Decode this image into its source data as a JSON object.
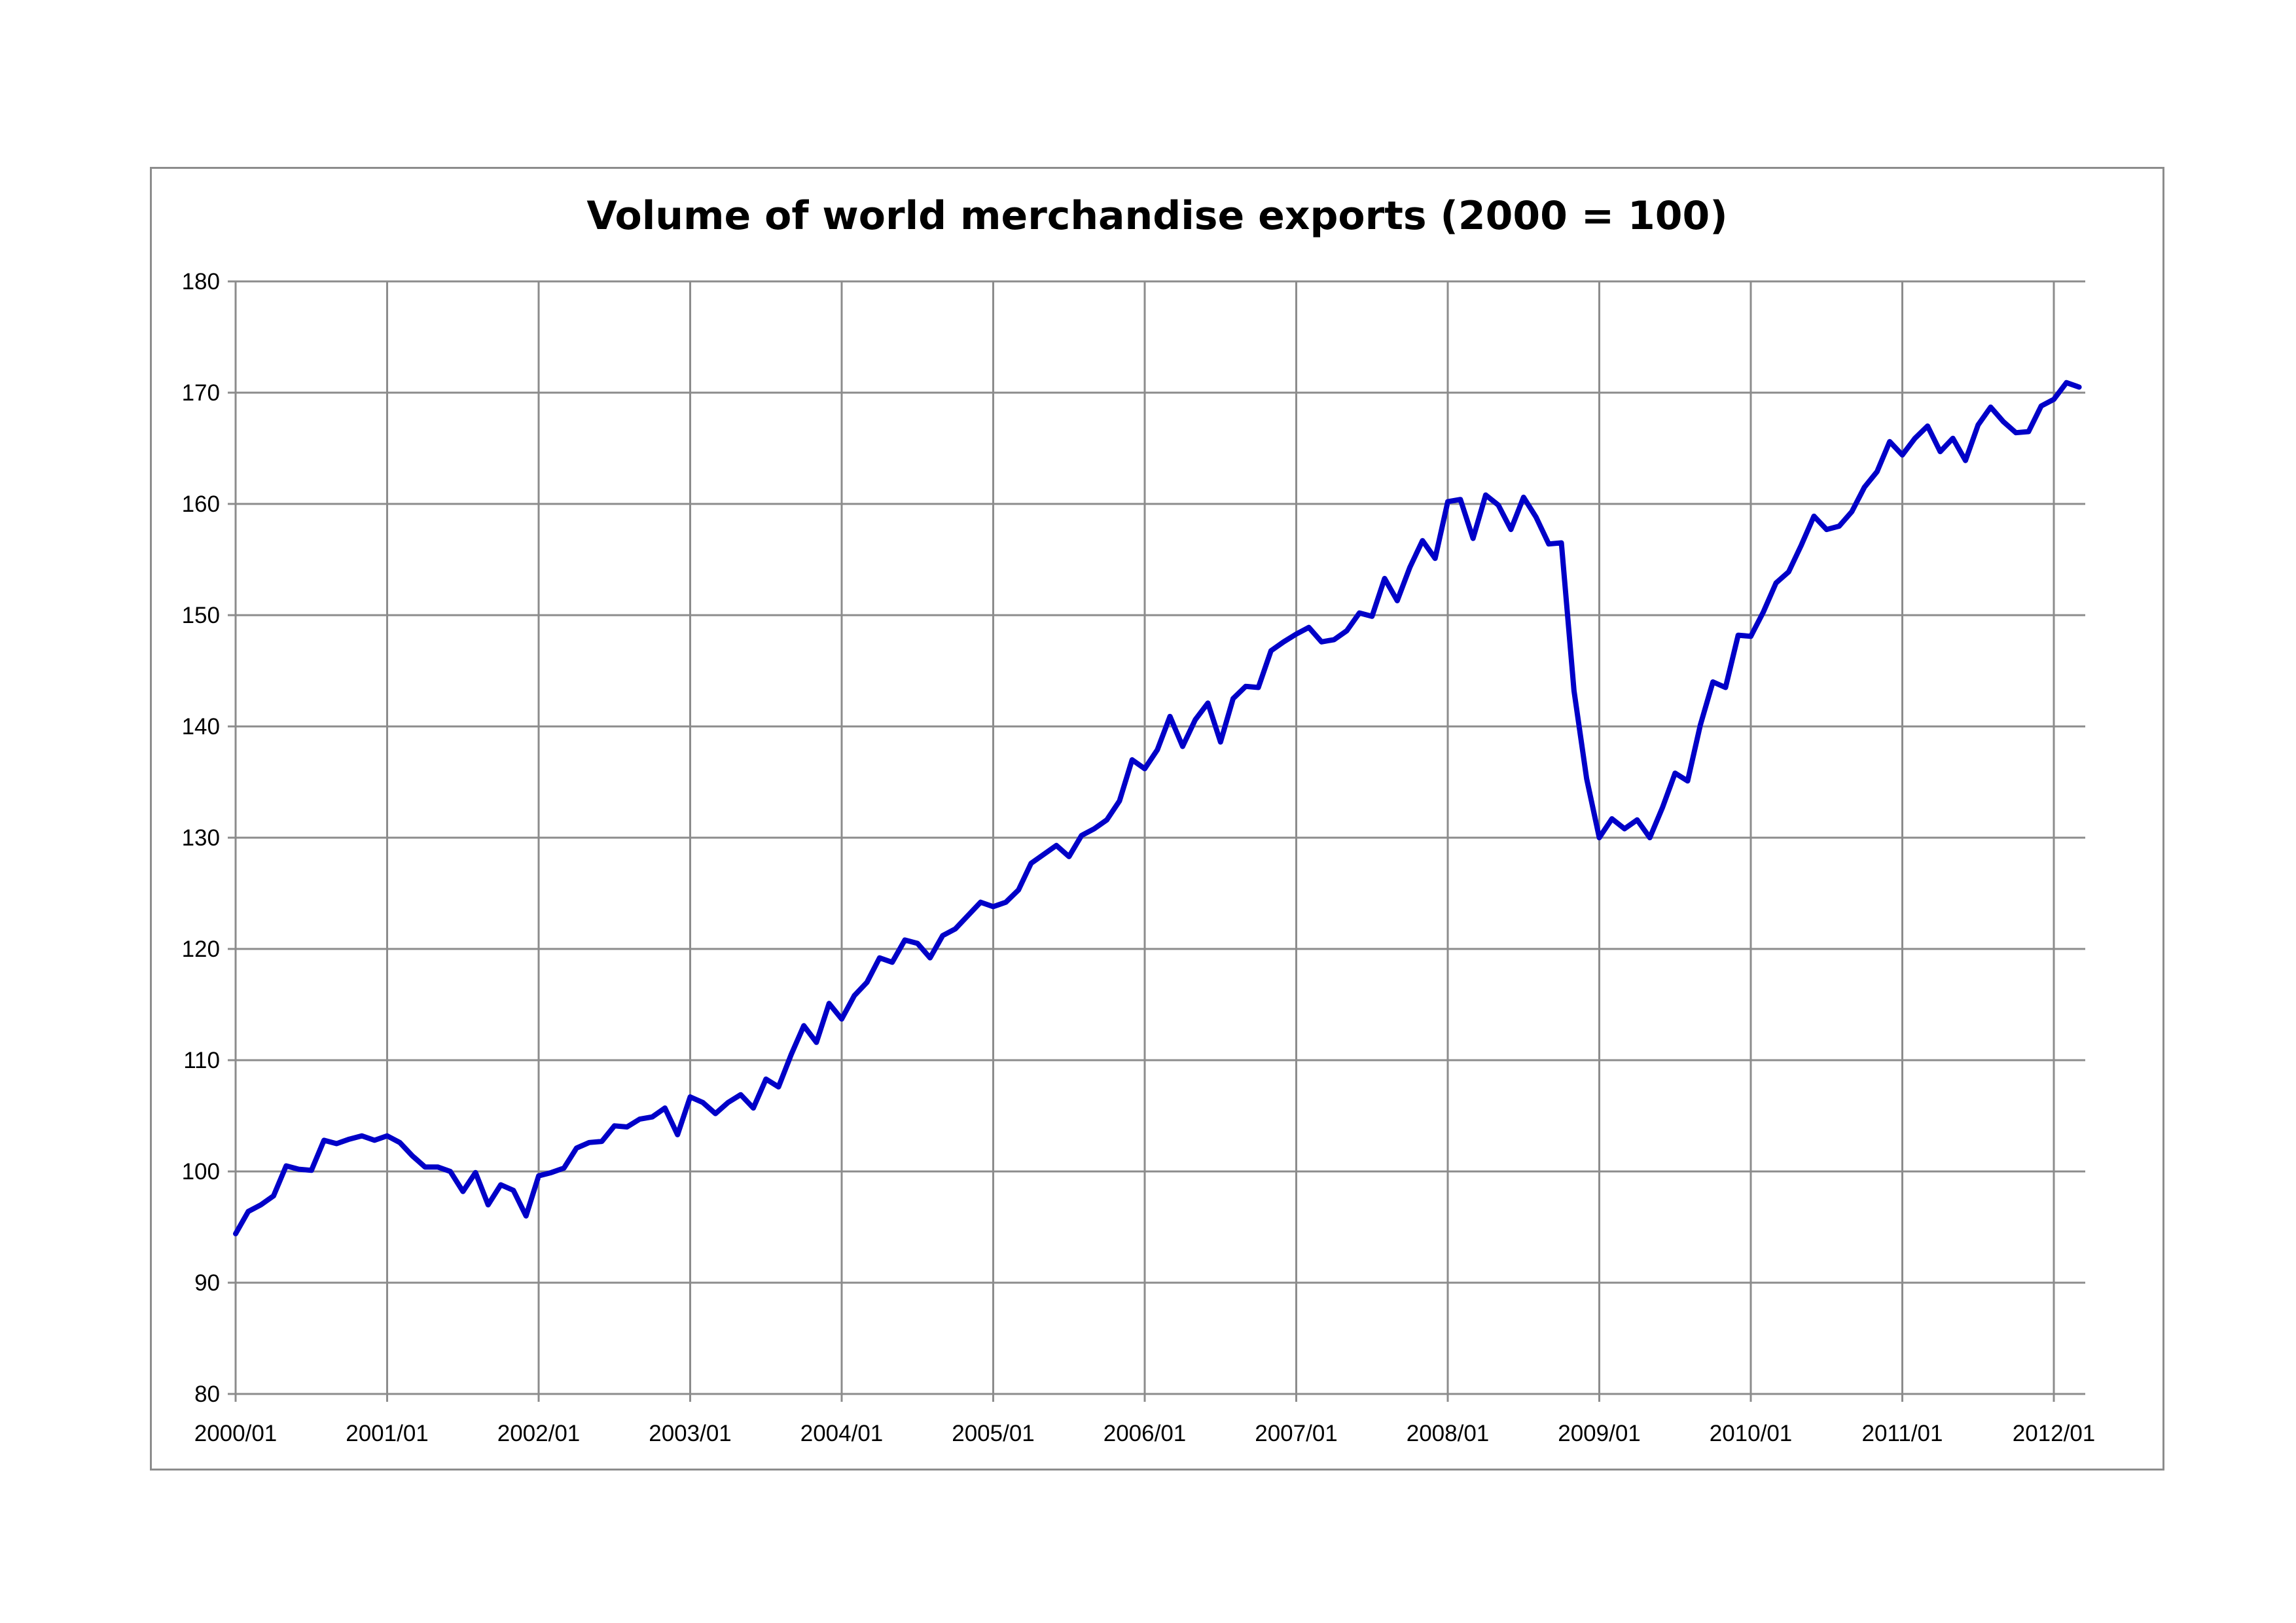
{
  "chart_data": {
    "type": "line",
    "title": "Volume of world merchandise exports (2000 = 100)",
    "xlabel": "",
    "ylabel": "",
    "ylim": [
      80,
      180
    ],
    "y_ticks": [
      "80",
      "90",
      "100",
      "110",
      "120",
      "130",
      "140",
      "150",
      "160",
      "170",
      "180"
    ],
    "x_ticks": [
      "2000/01",
      "2001/01",
      "2002/01",
      "2003/01",
      "2004/01",
      "2005/01",
      "2006/01",
      "2007/01",
      "2008/01",
      "2009/01",
      "2010/01",
      "2011/01",
      "2012/01"
    ],
    "grid": true,
    "legend": "none",
    "line_color": "#0000c8",
    "x_start": "2000/01",
    "x_step": "monthly",
    "series": [
      {
        "values": [
          94.4,
          96.4,
          97.0,
          97.8,
          100.5,
          100.2,
          100.1,
          102.8,
          102.5,
          102.9,
          103.2,
          102.8,
          103.2,
          102.6,
          101.4,
          100.4,
          100.4,
          100.0,
          98.2,
          99.9,
          97.0,
          98.8,
          98.3,
          96.0,
          99.6,
          99.9,
          100.3,
          102.1,
          102.6,
          102.7,
          104.1,
          104.0,
          104.7,
          104.9,
          105.7,
          103.3,
          106.7,
          106.2,
          105.2,
          106.2,
          106.9,
          105.7,
          108.3,
          107.6,
          110.5,
          113.1,
          111.6,
          115.1,
          113.7,
          115.8,
          117.0,
          119.2,
          118.8,
          120.8,
          120.5,
          119.2,
          121.2,
          121.8,
          123.0,
          124.2,
          123.8,
          124.2,
          125.3,
          127.7,
          128.5,
          129.3,
          128.3,
          130.2,
          130.8,
          131.6,
          133.3,
          137.0,
          136.2,
          137.9,
          140.9,
          138.2,
          140.6,
          142.1,
          138.6,
          142.5,
          143.6,
          143.5,
          146.8,
          147.6,
          148.3,
          148.9,
          147.6,
          147.8,
          148.6,
          150.2,
          149.9,
          153.3,
          151.3,
          154.3,
          156.7,
          155.1,
          160.2,
          160.4,
          156.9,
          160.8,
          159.9,
          157.7,
          160.6,
          158.8,
          156.4,
          156.5,
          143.2,
          135.3,
          130.0,
          131.7,
          130.8,
          131.6,
          130.0,
          132.7,
          135.8,
          135.1,
          140.1,
          144.0,
          143.5,
          148.2,
          148.1,
          150.3,
          152.9,
          153.9,
          156.3,
          158.9,
          157.7,
          158.0,
          159.3,
          161.5,
          162.9,
          165.6,
          164.4,
          165.9,
          167.0,
          164.7,
          165.9,
          163.9,
          167.1,
          168.7,
          167.4,
          166.4,
          166.5,
          168.8,
          169.4,
          170.9,
          170.5
        ]
      }
    ]
  }
}
